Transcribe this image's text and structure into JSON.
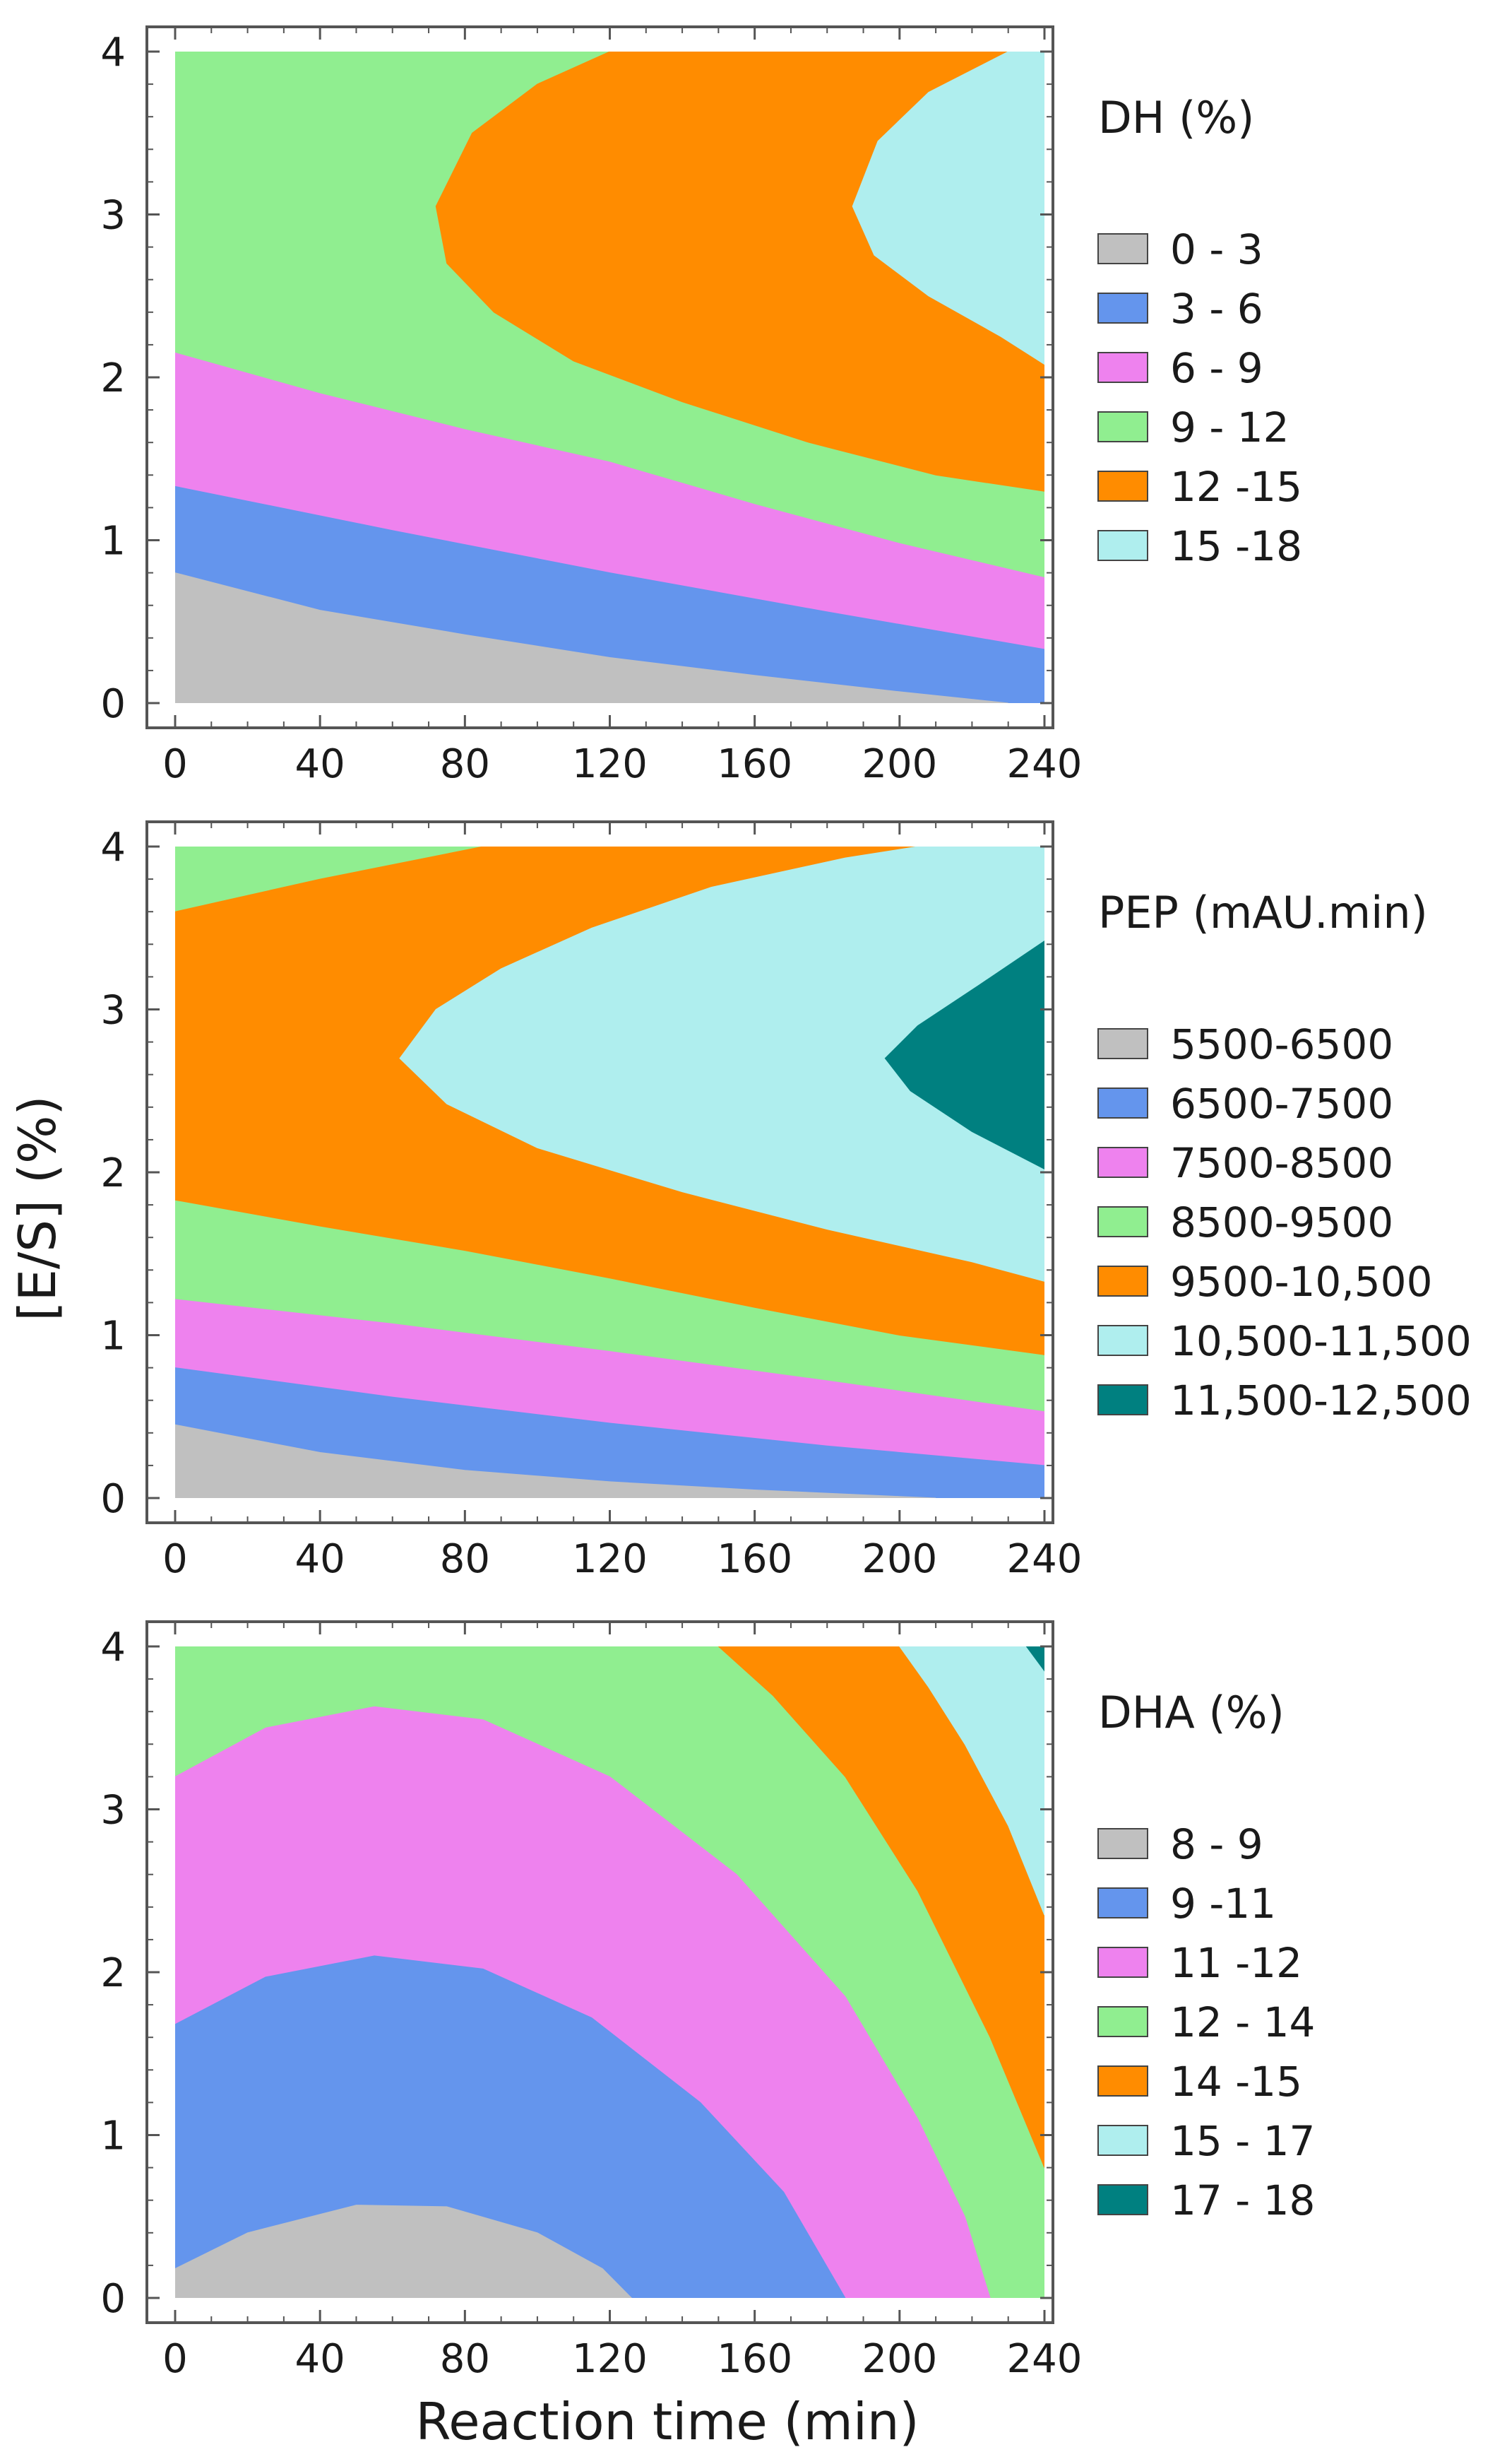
{
  "figure": {
    "ylabel": "[E/S] (%)",
    "xlabel": "Reaction time (min)",
    "colors": {
      "gray": "#c0c0c0",
      "blue": "#6495ed",
      "violet": "#ee82ee",
      "green": "#90ee90",
      "orange": "#ff8c00",
      "cyan": "#afeeee",
      "teal": "#008080",
      "frame": "#555555",
      "text": "#1a1a1a"
    }
  },
  "chart_data": [
    {
      "type": "contour",
      "title": "",
      "xlabel": "Reaction time (min)",
      "ylabel": "[E/S] (%)",
      "xlim": [
        0,
        240
      ],
      "ylim": [
        0,
        4
      ],
      "x_ticks": [
        "0",
        "40",
        "80",
        "120",
        "160",
        "200",
        "240"
      ],
      "y_ticks": [
        "0",
        "1",
        "2",
        "3",
        "4"
      ],
      "legend": {
        "title": "DH (%)",
        "entries": [
          {
            "label": "0 - 3",
            "color": "#c0c0c0"
          },
          {
            "label": "3 - 6",
            "color": "#6495ed"
          },
          {
            "label": "6 - 9",
            "color": "#ee82ee"
          },
          {
            "label": "9 - 12",
            "color": "#90ee90"
          },
          {
            "label": "12 -15",
            "color": "#ff8c00"
          },
          {
            "label": "15 -18",
            "color": "#afeeee"
          }
        ]
      },
      "regions": [
        {
          "color": "#90ee90",
          "points": [
            [
              0,
              0
            ],
            [
              240,
              0
            ],
            [
              240,
              4
            ],
            [
              0,
              4
            ]
          ]
        },
        {
          "color": "#ff8c00",
          "points": [
            [
              120,
              4
            ],
            [
              100,
              3.8
            ],
            [
              82,
              3.5
            ],
            [
              72,
              3.05
            ],
            [
              75,
              2.7
            ],
            [
              88,
              2.4
            ],
            [
              110,
              2.1
            ],
            [
              140,
              1.85
            ],
            [
              175,
              1.6
            ],
            [
              210,
              1.4
            ],
            [
              240,
              1.3
            ],
            [
              240,
              4
            ]
          ]
        },
        {
          "color": "#afeeee",
          "points": [
            [
              230,
              4
            ],
            [
              208,
              3.75
            ],
            [
              194,
              3.45
            ],
            [
              187,
              3.05
            ],
            [
              193,
              2.75
            ],
            [
              208,
              2.5
            ],
            [
              228,
              2.25
            ],
            [
              240,
              2.08
            ],
            [
              240,
              4
            ]
          ]
        },
        {
          "color": "#ee82ee",
          "points": [
            [
              0,
              0
            ],
            [
              0,
              2.15
            ],
            [
              40,
              1.9
            ],
            [
              80,
              1.68
            ],
            [
              120,
              1.48
            ],
            [
              160,
              1.22
            ],
            [
              200,
              0.98
            ],
            [
              240,
              0.77
            ],
            [
              240,
              0
            ]
          ]
        },
        {
          "color": "#6495ed",
          "points": [
            [
              0,
              0
            ],
            [
              0,
              1.33
            ],
            [
              60,
              1.06
            ],
            [
              120,
              0.8
            ],
            [
              180,
              0.56
            ],
            [
              240,
              0.33
            ],
            [
              240,
              0
            ]
          ]
        },
        {
          "color": "#c0c0c0",
          "points": [
            [
              0,
              0
            ],
            [
              0,
              0.8
            ],
            [
              40,
              0.57
            ],
            [
              80,
              0.42
            ],
            [
              120,
              0.28
            ],
            [
              160,
              0.17
            ],
            [
              200,
              0.07
            ],
            [
              230,
              0
            ],
            [
              0,
              0
            ]
          ]
        }
      ]
    },
    {
      "type": "contour",
      "title": "",
      "xlabel": "Reaction time (min)",
      "ylabel": "[E/S] (%)",
      "xlim": [
        0,
        240
      ],
      "ylim": [
        0,
        4
      ],
      "x_ticks": [
        "0",
        "40",
        "80",
        "120",
        "160",
        "200",
        "240"
      ],
      "y_ticks": [
        "0",
        "1",
        "2",
        "3",
        "4"
      ],
      "legend": {
        "title": "PEP (mAU.min)",
        "entries": [
          {
            "label": "5500-6500",
            "color": "#c0c0c0"
          },
          {
            "label": "6500-7500",
            "color": "#6495ed"
          },
          {
            "label": "7500-8500",
            "color": "#ee82ee"
          },
          {
            "label": "8500-9500",
            "color": "#90ee90"
          },
          {
            "label": "9500-10,500",
            "color": "#ff8c00"
          },
          {
            "label": "10,500-11,500",
            "color": "#afeeee"
          },
          {
            "label": "11,500-12,500",
            "color": "#008080"
          }
        ]
      },
      "regions": [
        {
          "color": "#90ee90",
          "points": [
            [
              0,
              0
            ],
            [
              240,
              0
            ],
            [
              240,
              4
            ],
            [
              0,
              4
            ]
          ]
        },
        {
          "color": "#ff8c00",
          "points": [
            [
              0,
              3.6
            ],
            [
              40,
              3.8
            ],
            [
              85,
              4
            ],
            [
              240,
              4
            ],
            [
              240,
              0.88
            ],
            [
              200,
              1
            ],
            [
              160,
              1.17
            ],
            [
              120,
              1.35
            ],
            [
              80,
              1.52
            ],
            [
              40,
              1.67
            ],
            [
              0,
              1.83
            ]
          ]
        },
        {
          "color": "#afeeee",
          "points": [
            [
              205,
              4
            ],
            [
              240,
              4
            ],
            [
              240,
              1.33
            ],
            [
              220,
              1.45
            ],
            [
              180,
              1.65
            ],
            [
              140,
              1.88
            ],
            [
              100,
              2.15
            ],
            [
              75,
              2.42
            ],
            [
              62,
              2.7
            ],
            [
              72,
              3
            ],
            [
              90,
              3.25
            ],
            [
              115,
              3.5
            ],
            [
              148,
              3.75
            ],
            [
              185,
              3.93
            ]
          ]
        },
        {
          "color": "#008080",
          "points": [
            [
              240,
              3.42
            ],
            [
              222,
              3.15
            ],
            [
              205,
              2.9
            ],
            [
              196,
              2.7
            ],
            [
              203,
              2.5
            ],
            [
              220,
              2.25
            ],
            [
              240,
              2.02
            ]
          ]
        },
        {
          "color": "#ee82ee",
          "points": [
            [
              0,
              0
            ],
            [
              0,
              1.22
            ],
            [
              60,
              1.07
            ],
            [
              120,
              0.9
            ],
            [
              180,
              0.72
            ],
            [
              240,
              0.53
            ],
            [
              240,
              0
            ]
          ]
        },
        {
          "color": "#6495ed",
          "points": [
            [
              0,
              0
            ],
            [
              0,
              0.8
            ],
            [
              60,
              0.62
            ],
            [
              120,
              0.46
            ],
            [
              180,
              0.32
            ],
            [
              240,
              0.2
            ],
            [
              240,
              0
            ]
          ]
        },
        {
          "color": "#c0c0c0",
          "points": [
            [
              0,
              0
            ],
            [
              0,
              0.45
            ],
            [
              40,
              0.28
            ],
            [
              80,
              0.17
            ],
            [
              120,
              0.1
            ],
            [
              160,
              0.05
            ],
            [
              200,
              0.01
            ],
            [
              210,
              0
            ],
            [
              0,
              0
            ]
          ]
        }
      ]
    },
    {
      "type": "contour",
      "title": "",
      "xlabel": "Reaction time (min)",
      "ylabel": "[E/S] (%)",
      "xlim": [
        0,
        240
      ],
      "ylim": [
        0,
        4
      ],
      "x_ticks": [
        "0",
        "40",
        "80",
        "120",
        "160",
        "200",
        "240"
      ],
      "y_ticks": [
        "0",
        "1",
        "2",
        "3",
        "4"
      ],
      "legend": {
        "title": "DHA (%)",
        "entries": [
          {
            "label": "8 - 9",
            "color": "#c0c0c0"
          },
          {
            "label": "9 -11",
            "color": "#6495ed"
          },
          {
            "label": "11 -12",
            "color": "#ee82ee"
          },
          {
            "label": "12 - 14",
            "color": "#90ee90"
          },
          {
            "label": "14 -15",
            "color": "#ff8c00"
          },
          {
            "label": "15 - 17",
            "color": "#afeeee"
          },
          {
            "label": "17 - 18",
            "color": "#008080"
          }
        ]
      },
      "regions": [
        {
          "color": "#90ee90",
          "points": [
            [
              0,
              0
            ],
            [
              240,
              0
            ],
            [
              240,
              4
            ],
            [
              0,
              4
            ]
          ]
        },
        {
          "color": "#ff8c00",
          "points": [
            [
              150,
              4
            ],
            [
              240,
              4
            ],
            [
              240,
              0.8
            ],
            [
              225,
              1.6
            ],
            [
              205,
              2.5
            ],
            [
              185,
              3.2
            ],
            [
              165,
              3.7
            ]
          ]
        },
        {
          "color": "#afeeee",
          "points": [
            [
              200,
              4
            ],
            [
              240,
              4
            ],
            [
              240,
              2.35
            ],
            [
              230,
              2.9
            ],
            [
              218,
              3.4
            ],
            [
              208,
              3.75
            ]
          ]
        },
        {
          "color": "#008080",
          "points": [
            [
              235,
              4
            ],
            [
              240,
              4
            ],
            [
              240,
              3.85
            ]
          ]
        },
        {
          "color": "#ee82ee",
          "points": [
            [
              0,
              0
            ],
            [
              0,
              3.2
            ],
            [
              25,
              3.5
            ],
            [
              55,
              3.63
            ],
            [
              85,
              3.55
            ],
            [
              120,
              3.2
            ],
            [
              155,
              2.6
            ],
            [
              185,
              1.85
            ],
            [
              205,
              1.1
            ],
            [
              218,
              0.5
            ],
            [
              225,
              0
            ]
          ]
        },
        {
          "color": "#6495ed",
          "points": [
            [
              0,
              0
            ],
            [
              0,
              1.68
            ],
            [
              25,
              1.97
            ],
            [
              55,
              2.1
            ],
            [
              85,
              2.02
            ],
            [
              115,
              1.72
            ],
            [
              145,
              1.2
            ],
            [
              168,
              0.65
            ],
            [
              185,
              0
            ]
          ]
        },
        {
          "color": "#c0c0c0",
          "points": [
            [
              0,
              0
            ],
            [
              0,
              0.18
            ],
            [
              20,
              0.4
            ],
            [
              50,
              0.57
            ],
            [
              75,
              0.56
            ],
            [
              100,
              0.4
            ],
            [
              118,
              0.18
            ],
            [
              126,
              0
            ]
          ]
        }
      ]
    }
  ]
}
